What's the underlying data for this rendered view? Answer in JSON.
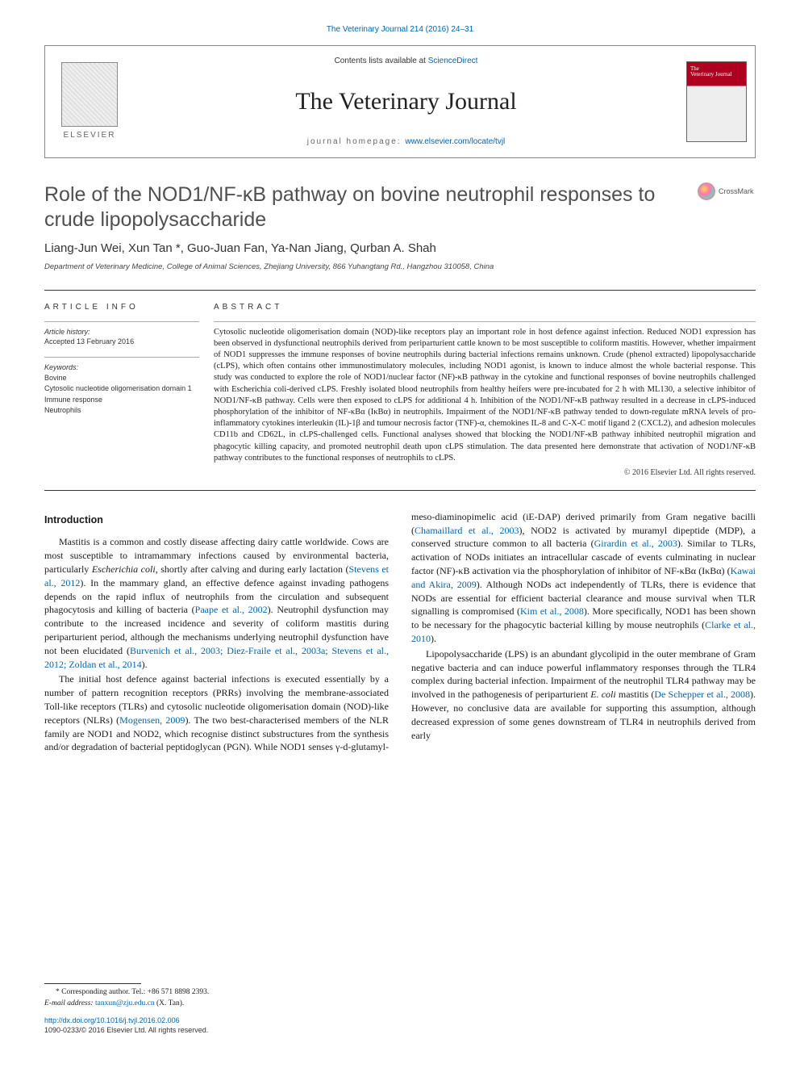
{
  "top_link": {
    "prefix": "The Veterinary Journal ",
    "citation": "214 (2016) 24–31"
  },
  "header": {
    "contents_prefix": "Contents lists available at ",
    "contents_link": "ScienceDirect",
    "journal_name": "The Veterinary Journal",
    "homepage_prefix": "journal homepage: ",
    "homepage_url": "www.elsevier.com/locate/tvjl",
    "publisher_logo": "ELSEVIER"
  },
  "article": {
    "title": "Role of the NOD1/NF-κB pathway on bovine neutrophil responses to crude lipopolysaccharide",
    "crossmark_label": "CrossMark",
    "authors": "Liang-Jun Wei, Xun Tan *, Guo-Juan Fan, Ya-Nan Jiang, Qurban A. Shah",
    "affiliation": "Department of Veterinary Medicine, College of Animal Sciences, Zhejiang University, 866 Yuhangtang Rd., Hangzhou 310058, China"
  },
  "info": {
    "heading": "ARTICLE INFO",
    "history_label": "Article history:",
    "history_value": "Accepted 13 February 2016",
    "keywords_label": "Keywords:",
    "keywords": [
      "Bovine",
      "Cytosolic nucleotide oligomerisation domain 1",
      "Immune response",
      "Neutrophils"
    ]
  },
  "abstract": {
    "heading": "ABSTRACT",
    "text": "Cytosolic nucleotide oligomerisation domain (NOD)-like receptors play an important role in host defence against infection. Reduced NOD1 expression has been observed in dysfunctional neutrophils derived from periparturient cattle known to be most susceptible to coliform mastitis. However, whether impairment of NOD1 suppresses the immune responses of bovine neutrophils during bacterial infections remains unknown. Crude (phenol extracted) lipopolysaccharide (cLPS), which often contains other immunostimulatory molecules, including NOD1 agonist, is known to induce almost the whole bacterial response. This study was conducted to explore the role of NOD1/nuclear factor (NF)-κB pathway in the cytokine and functional responses of bovine neutrophils challenged with Escherichia coli-derived cLPS. Freshly isolated blood neutrophils from healthy heifers were pre-incubated for 2 h with ML130, a selective inhibitor of NOD1/NF-κB pathway. Cells were then exposed to cLPS for additional 4 h. Inhibition of the NOD1/NF-κB pathway resulted in a decrease in cLPS-induced phosphorylation of the inhibitor of NF-κBα (IκBα) in neutrophils. Impairment of the NOD1/NF-κB pathway tended to down-regulate mRNA levels of pro-inflammatory cytokines interleukin (IL)-1β and tumour necrosis factor (TNF)-α, chemokines IL-8 and C-X-C motif ligand 2 (CXCL2), and adhesion molecules CD11b and CD62L, in cLPS-challenged cells. Functional analyses showed that blocking the NOD1/NF-κB pathway inhibited neutrophil migration and phagocytic killing capacity, and promoted neutrophil death upon cLPS stimulation. The data presented here demonstrate that activation of NOD1/NF-κB pathway contributes to the functional responses of neutrophils to cLPS.",
    "copyright": "© 2016 Elsevier Ltd. All rights reserved."
  },
  "body": {
    "intro_heading": "Introduction",
    "p1_a": "Mastitis is a common and costly disease affecting dairy cattle worldwide. Cows are most susceptible to intramammary infections caused by environmental bacteria, particularly ",
    "p1_ital1": "Escherichia coli",
    "p1_b": ", shortly after calving and during early lactation (",
    "p1_cite1": "Stevens et al., 2012",
    "p1_c": "). In the mammary gland, an effective defence against invading pathogens depends on the rapid influx of neutrophils from the circulation and subsequent phagocytosis and killing of bacteria (",
    "p1_cite2": "Paape et al., 2002",
    "p1_d": "). Neutrophil dysfunction may contribute to the increased incidence and severity of coliform mastitis during periparturient period, although the mechanisms underlying neutrophil dysfunction have not been elucidated (",
    "p1_cite3": "Burvenich et al., 2003; Diez-Fraile et al., 2003a; Stevens et al., 2012; Zoldan et al., 2014",
    "p1_e": ").",
    "p2_a": "The initial host defence against bacterial infections is executed essentially by a number of pattern recognition receptors (PRRs) involving the membrane-associated Toll-like receptors (TLRs) and cytosolic nucleotide oligomerisation domain (NOD)-like receptors (NLRs) (",
    "p2_cite1": "Mogensen, 2009",
    "p2_b": "). The two best-characterised members of ",
    "p2_c": "the NLR family are NOD1 and NOD2, which recognise distinct substructures from the synthesis and/or degradation of bacterial peptidoglycan (PGN). While NOD1 senses γ-d-glutamyl-meso-diaminopimelic acid (iE-DAP) derived primarily from Gram negative bacilli (",
    "p2_cite2": "Chamaillard et al., 2003",
    "p2_d": "), NOD2 is activated by muramyl dipeptide (MDP), a conserved structure common to all bacteria (",
    "p2_cite3": "Girardin et al., 2003",
    "p2_e": "). Similar to TLRs, activation of NODs initiates an intracellular cascade of events culminating in nuclear factor (NF)-κB activation via the phosphorylation of inhibitor of NF-κBα (IκBα) (",
    "p2_cite4": "Kawai and Akira, 2009",
    "p2_f": "). Although NODs act independently of TLRs, there is evidence that NODs are essential for efficient bacterial clearance and mouse survival when TLR signalling is compromised (",
    "p2_cite5": "Kim et al., 2008",
    "p2_g": "). More specifically, NOD1 has been shown to be necessary for the phagocytic bacterial killing by mouse neutrophils (",
    "p2_cite6": "Clarke et al., 2010",
    "p2_h": ").",
    "p3_a": "Lipopolysaccharide (LPS) is an abundant glycolipid in the outer membrane of Gram negative bacteria and can induce powerful inflammatory responses through the TLR4 complex during bacterial infection. Impairment of the neutrophil TLR4 pathway may be involved in the pathogenesis of periparturient ",
    "p3_ital1": "E. coli",
    "p3_b": " mastitis (",
    "p3_cite1": "De Schepper et al., 2008",
    "p3_c": "). However, no conclusive data are available for supporting this assumption, although decreased expression of some genes downstream of TLR4 in neutrophils derived from early"
  },
  "footer": {
    "corr_label": "* Corresponding author. Tel.: +86 571 8898 2393.",
    "email_label": "E-mail address: ",
    "email": "tanxun@zju.edu.cn",
    "email_suffix": " (X. Tan).",
    "doi": "http://dx.doi.org/10.1016/j.tvjl.2016.02.006",
    "issn": "1090-0233/© 2016 Elsevier Ltd. All rights reserved."
  },
  "colors": {
    "link": "#0066b3",
    "text": "#1a1a1a",
    "title_gray": "#505050",
    "rule": "#333333"
  }
}
